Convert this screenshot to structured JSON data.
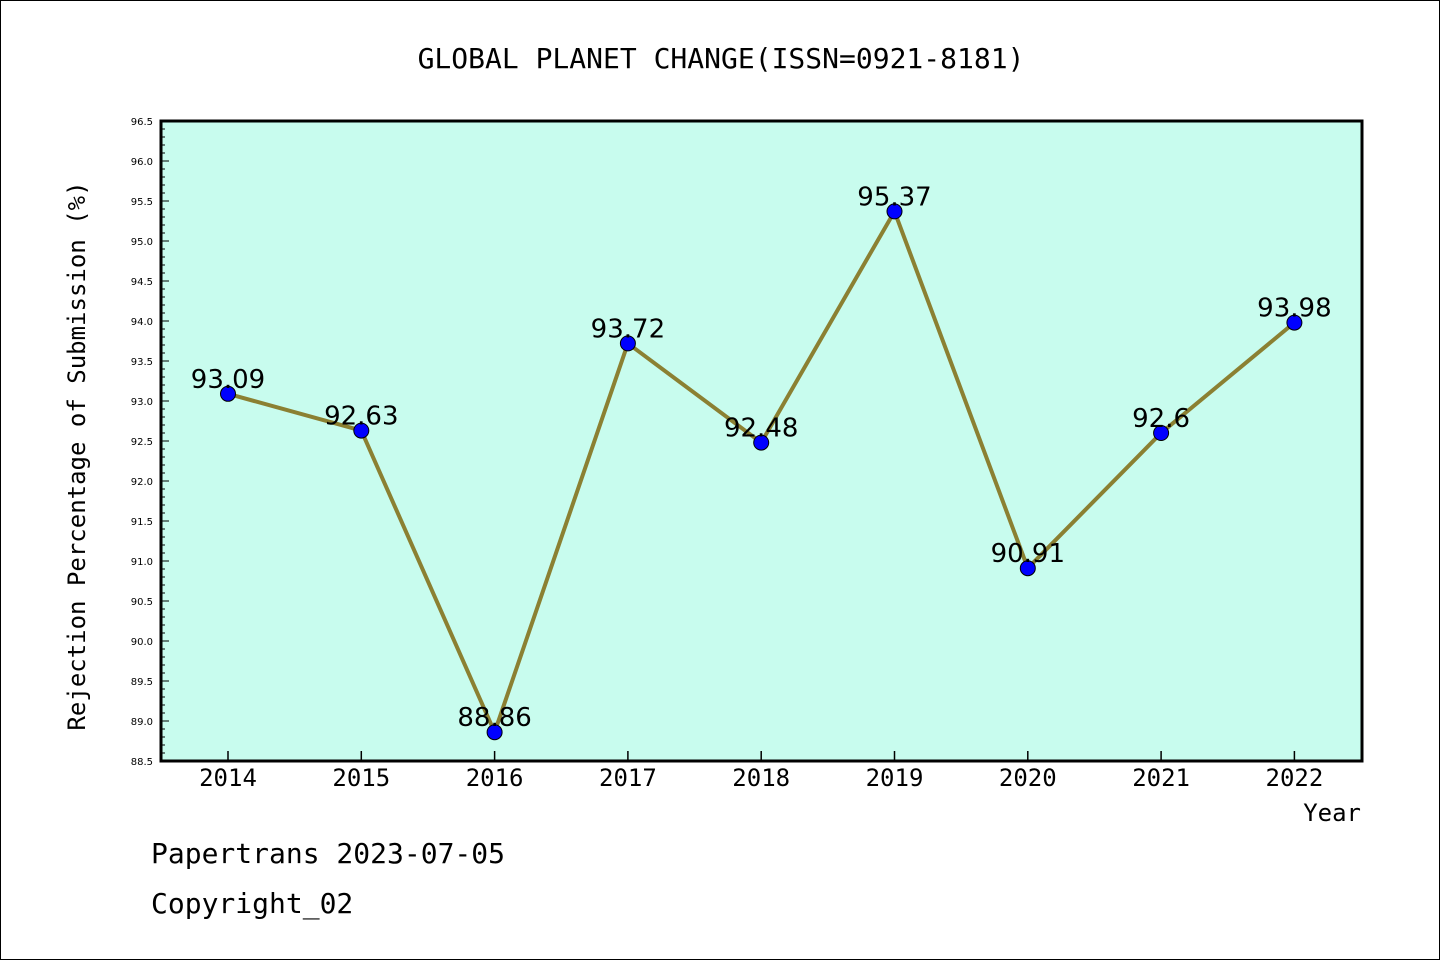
{
  "chart_data": {
    "type": "line",
    "title": "GLOBAL PLANET CHANGE(ISSN=0921-8181)",
    "xlabel": "Year",
    "ylabel": "Rejection Percentage of Submission (%)",
    "categories": [
      "2014",
      "2015",
      "2016",
      "2017",
      "2018",
      "2019",
      "2020",
      "2021",
      "2022"
    ],
    "series": [
      {
        "values": [
          93.09,
          92.63,
          88.86,
          93.72,
          92.48,
          95.37,
          90.91,
          92.6,
          93.98
        ],
        "labels": [
          "93.09",
          "92.63",
          "88.86",
          "93.72",
          "92.48",
          "95.37",
          "90.91",
          "92.6",
          "93.98"
        ]
      }
    ],
    "ylim": [
      88.5,
      96.5
    ],
    "yticks": [
      "88.5",
      "89.0",
      "89.5",
      "90.0",
      "90.5",
      "91.0",
      "91.5",
      "92.0",
      "92.5",
      "93.0",
      "93.5",
      "94.0",
      "94.5",
      "95.0",
      "95.5",
      "96.0",
      "96.5"
    ],
    "grid": false,
    "colors": {
      "plot_background": "#c8fcee",
      "line": "#8b8032",
      "marker": "#0000ff"
    }
  },
  "footer": {
    "line1": "Papertrans 2023-07-05",
    "line2": "Copyright_02"
  }
}
